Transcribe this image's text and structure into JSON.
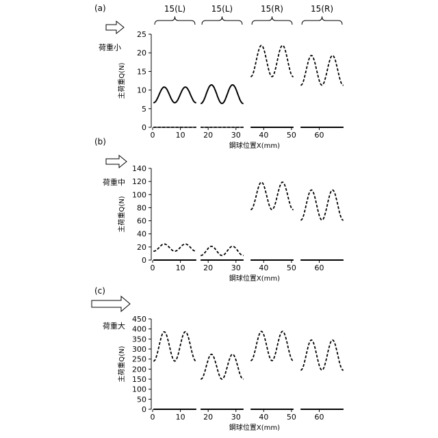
{
  "groups": [
    {
      "label": "15(L)",
      "xrange": [
        0,
        16
      ]
    },
    {
      "label": "15(L)",
      "xrange": [
        17,
        33
      ]
    },
    {
      "label": "15(R)",
      "xrange": [
        35,
        51
      ]
    },
    {
      "label": "15(R)",
      "xrange": [
        53,
        69
      ]
    }
  ],
  "chart_data": [
    {
      "panel": "(a)",
      "type": "line",
      "load_label": "荷重小",
      "ylabel": "主荷重Q(N)",
      "xlabel": "鋼球位置X(mm)",
      "xlim": [
        -0.5,
        69
      ],
      "ylim": [
        0,
        25
      ],
      "xticks": [
        0,
        10,
        20,
        30,
        40,
        50,
        60
      ],
      "xticklabels": [
        "0",
        "10",
        "20",
        "30",
        "40",
        "50",
        "60"
      ],
      "yticks": [
        0,
        5,
        10,
        15,
        20,
        25
      ],
      "yticklabels": [
        "0",
        "5",
        "10",
        "15",
        "20",
        "25"
      ],
      "series": [
        {
          "style": "solid",
          "values": [
            {
              "x": [
                0,
                16
              ],
              "center": 8.7,
              "amp": 2.1,
              "period": 7.6,
              "phase": 0.3
            },
            {
              "x": [
                17,
                33
              ],
              "center": 8.9,
              "amp": 2.5,
              "period": 7.6,
              "phase": 0.3
            },
            {
              "x": [
                35,
                51
              ],
              "center": 0,
              "amp": 0,
              "period": 7.6,
              "phase": 0
            },
            {
              "x": [
                53,
                69
              ],
              "center": 0,
              "amp": 0,
              "period": 7.6,
              "phase": 0
            }
          ]
        },
        {
          "style": "dashed",
          "values": [
            {
              "x": [
                0,
                16
              ],
              "center": 0,
              "amp": 0,
              "period": 7.6,
              "phase": 0
            },
            {
              "x": [
                17,
                33
              ],
              "center": 0,
              "amp": 0,
              "period": 7.6,
              "phase": 0
            },
            {
              "x": [
                35,
                51
              ],
              "center": 17.8,
              "amp": 4.2,
              "period": 7.6,
              "phase": 0.3
            },
            {
              "x": [
                53,
                69
              ],
              "center": 15.3,
              "amp": 4.0,
              "period": 7.6,
              "phase": 0.3
            }
          ]
        }
      ]
    },
    {
      "panel": "(b)",
      "type": "line",
      "load_label": "荷重中",
      "ylabel": "主荷重Q(N)",
      "xlabel": "鋼球位置X(mm)",
      "xlim": [
        -0.5,
        69
      ],
      "ylim": [
        0,
        140
      ],
      "xticks": [
        0,
        10,
        20,
        30,
        40,
        50,
        60
      ],
      "xticklabels": [
        "0",
        "10",
        "20",
        "30",
        "40",
        "50",
        "60"
      ],
      "yticks": [
        0,
        20,
        40,
        60,
        80,
        100,
        120,
        140
      ],
      "yticklabels": [
        "0",
        "20",
        "40",
        "60",
        "80",
        "100",
        "120",
        "140"
      ],
      "series": [
        {
          "style": "solid",
          "values": [
            {
              "x": [
                0,
                16
              ],
              "center": 0,
              "amp": 0,
              "period": 7.6,
              "phase": 0
            },
            {
              "x": [
                17,
                33
              ],
              "center": 0,
              "amp": 0,
              "period": 7.6,
              "phase": 0
            },
            {
              "x": [
                35,
                51
              ],
              "center": 0,
              "amp": 0,
              "period": 7.6,
              "phase": 0
            },
            {
              "x": [
                53,
                69
              ],
              "center": 0,
              "amp": 0,
              "period": 7.6,
              "phase": 0
            }
          ]
        },
        {
          "style": "dashed",
          "values": [
            {
              "x": [
                0,
                16
              ],
              "center": 19,
              "amp": 5.5,
              "period": 7.6,
              "phase": 0.3
            },
            {
              "x": [
                17,
                33
              ],
              "center": 14,
              "amp": 7,
              "period": 7.6,
              "phase": 0.3
            },
            {
              "x": [
                35,
                51
              ],
              "center": 98,
              "amp": 21,
              "period": 7.6,
              "phase": 0.3
            },
            {
              "x": [
                53,
                69
              ],
              "center": 84,
              "amp": 23,
              "period": 7.6,
              "phase": 0.3
            }
          ]
        }
      ]
    },
    {
      "panel": "(c)",
      "type": "line",
      "load_label": "荷重大",
      "ylabel": "主荷重Q(N)",
      "xlabel": "鋼球位置X(mm)",
      "xlim": [
        -0.5,
        69
      ],
      "ylim": [
        0,
        450
      ],
      "xticks": [
        0,
        10,
        20,
        30,
        40,
        50,
        60
      ],
      "xticklabels": [
        "0",
        "10",
        "20",
        "30",
        "40",
        "50",
        "60"
      ],
      "yticks": [
        0,
        50,
        100,
        150,
        200,
        250,
        300,
        350,
        400,
        450
      ],
      "yticklabels": [
        "0",
        "50",
        "100",
        "150",
        "200",
        "250",
        "300",
        "350",
        "400",
        "450"
      ],
      "series": [
        {
          "style": "solid",
          "values": [
            {
              "x": [
                0,
                16
              ],
              "center": 0,
              "amp": 0,
              "period": 7.6,
              "phase": 0
            },
            {
              "x": [
                17,
                33
              ],
              "center": 0,
              "amp": 0,
              "period": 7.6,
              "phase": 0
            },
            {
              "x": [
                35,
                51
              ],
              "center": 0,
              "amp": 0,
              "period": 7.6,
              "phase": 0
            },
            {
              "x": [
                53,
                69
              ],
              "center": 0,
              "amp": 0,
              "period": 7.6,
              "phase": 0
            }
          ]
        },
        {
          "style": "dashed",
          "values": [
            {
              "x": [
                0,
                16
              ],
              "center": 313,
              "amp": 73,
              "period": 7.6,
              "phase": 0.3
            },
            {
              "x": [
                17,
                33
              ],
              "center": 212,
              "amp": 62,
              "period": 7.6,
              "phase": 0.3
            },
            {
              "x": [
                35,
                51
              ],
              "center": 315,
              "amp": 73,
              "period": 7.6,
              "phase": 0.3
            },
            {
              "x": [
                53,
                69
              ],
              "center": 270,
              "amp": 75,
              "period": 7.6,
              "phase": 0.3
            }
          ]
        }
      ]
    }
  ]
}
